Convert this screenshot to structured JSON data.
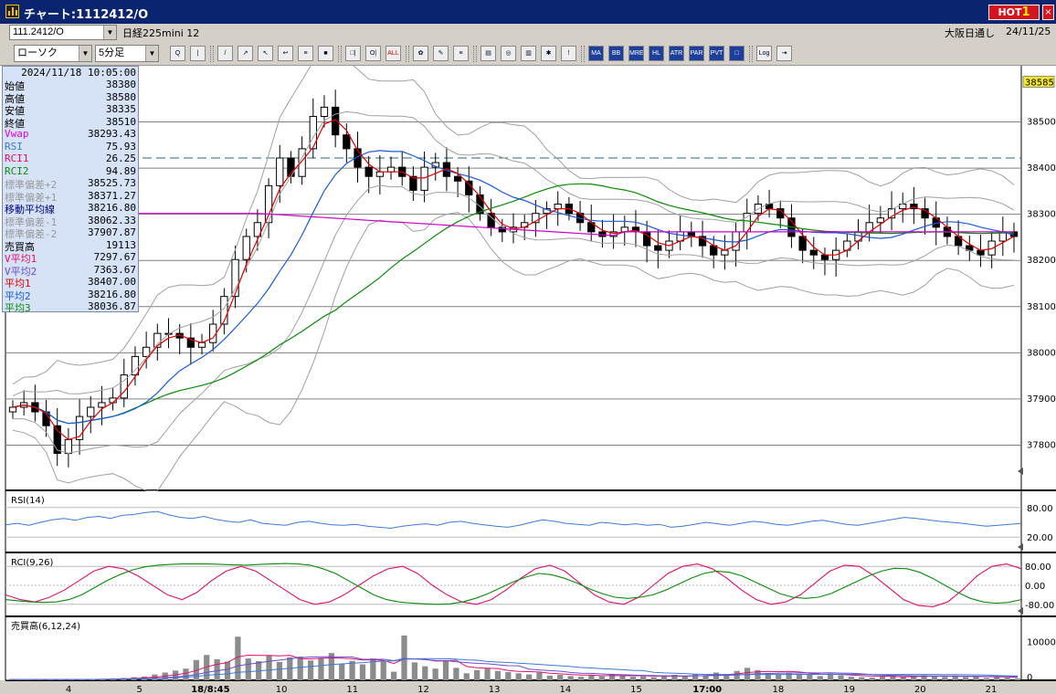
{
  "window": {
    "title": "チャート:1112412/O",
    "hot_label": "HOT",
    "hot_num": "1",
    "close": "×"
  },
  "header": {
    "code": "111.2412/O",
    "name": "日経225mini 12",
    "source": "大阪日通し",
    "date": "24/11/25"
  },
  "controls": {
    "chart_type": "ローソク",
    "period": "5分足"
  },
  "toolbar": [
    "Q",
    "|",
    "/",
    "↗",
    "↖",
    "↩",
    "≡",
    "■",
    "□|",
    "O|",
    "ALL",
    "✿",
    "✎",
    "≡",
    "▤",
    "◎",
    "▥",
    "✱",
    "!",
    "MA",
    "BB",
    "MRE",
    "HL",
    "ATR",
    "PAR",
    "PVT",
    "□",
    "Log",
    "⇥"
  ],
  "info": {
    "datetime": "2024/11/18  10:05:00",
    "rows": [
      {
        "k": "始値",
        "v": "38380",
        "c": "#000"
      },
      {
        "k": "高値",
        "v": "38580",
        "c": "#000"
      },
      {
        "k": "安値",
        "v": "38335",
        "c": "#000"
      },
      {
        "k": "終値",
        "v": "38510",
        "c": "#000"
      },
      {
        "k": "Vwap",
        "v": "38293.43",
        "c": "#e000e0"
      },
      {
        "k": "RSI",
        "v": "75.93",
        "c": "#3a7ad6"
      },
      {
        "k": "RCI1",
        "v": "26.25",
        "c": "#e0106a"
      },
      {
        "k": "RCI2",
        "v": "94.89",
        "c": "#0a8a0a"
      },
      {
        "k": "標準偏差+2",
        "v": "38525.73",
        "c": "#9a9a9a"
      },
      {
        "k": "標準偏差+1",
        "v": "38371.27",
        "c": "#9a9a9a"
      },
      {
        "k": "移動平均線",
        "v": "38216.80",
        "c": "#000080"
      },
      {
        "k": "標準偏差-1",
        "v": "38062.33",
        "c": "#9a9a9a"
      },
      {
        "k": "標準偏差-2",
        "v": "37907.87",
        "c": "#9a9a9a"
      },
      {
        "k": "売買高",
        "v": "19113",
        "c": "#000"
      },
      {
        "k": "V平均1",
        "v": "7297.67",
        "c": "#e0106a"
      },
      {
        "k": "V平均2",
        "v": "7363.67",
        "c": "#6a4ad6"
      },
      {
        "k": "平均1",
        "v": "38407.00",
        "c": "#e00000"
      },
      {
        "k": "平均2",
        "v": "38216.80",
        "c": "#1a5ad6"
      },
      {
        "k": "平均3",
        "v": "38036.87",
        "c": "#0a8a0a"
      }
    ]
  },
  "panels": {
    "rsi_label": "RSI(14)",
    "rci_label": "RCI(9,26)",
    "vol_label": "売買高(6,12,24)"
  },
  "colors": {
    "up": "#ffffff",
    "down": "#000000",
    "ma1": "#e00000",
    "ma2": "#1a5ad6",
    "ma3": "#0a8a0a",
    "bb": "#a0a0a0",
    "vwap": "#d000d0",
    "rsi": "#3a7ad6",
    "rci1": "#e0106a",
    "rci2": "#0a8a0a",
    "vol": "#8c8c8c"
  },
  "chart_data": [
    {
      "type": "candlestick",
      "title": "",
      "ylim": [
        37700,
        38600
      ],
      "yticks": [
        37800,
        37900,
        38000,
        38100,
        38200,
        38300,
        38400,
        38500
      ],
      "current_price": "38585",
      "reference_line": 38420,
      "xticks": [
        "4",
        "5",
        "18/8:45",
        "10",
        "11",
        "12",
        "13",
        "14",
        "15",
        "17:00",
        "18",
        "19",
        "20",
        "21"
      ],
      "closes": [
        37880,
        37890,
        37870,
        37840,
        37780,
        37810,
        37860,
        37880,
        37890,
        37900,
        37950,
        37990,
        38010,
        38040,
        38040,
        38030,
        38010,
        38020,
        38060,
        38120,
        38200,
        38250,
        38280,
        38360,
        38420,
        38380,
        38440,
        38510,
        38530,
        38470,
        38440,
        38400,
        38380,
        38390,
        38400,
        38380,
        38350,
        38400,
        38410,
        38380,
        38370,
        38340,
        38300,
        38270,
        38260,
        38270,
        38280,
        38300,
        38310,
        38320,
        38300,
        38280,
        38260,
        38250,
        38260,
        38270,
        38260,
        38230,
        38220,
        38240,
        38260,
        38250,
        38230,
        38210,
        38220,
        38260,
        38300,
        38320,
        38310,
        38290,
        38250,
        38220,
        38210,
        38200,
        38220,
        38240,
        38260,
        38280,
        38290,
        38310,
        38320,
        38310,
        38290,
        38270,
        38250,
        38230,
        38220,
        38210,
        38240,
        38260,
        38250
      ]
    },
    {
      "type": "line",
      "title": "RSI(14)",
      "ylim": [
        0,
        100
      ],
      "yticks": [
        20,
        80
      ],
      "values": [
        45,
        48,
        44,
        50,
        55,
        58,
        54,
        60,
        62,
        58,
        64,
        66,
        70,
        72,
        65,
        60,
        58,
        62,
        56,
        52,
        50,
        55,
        48,
        46,
        44,
        50,
        52,
        48,
        45,
        44,
        46,
        42,
        40,
        38,
        42,
        45,
        47,
        44,
        50,
        52,
        48,
        45,
        42,
        40,
        44,
        50,
        55,
        52,
        48,
        46,
        44,
        50,
        48,
        45,
        47,
        44,
        46,
        40,
        42,
        46,
        50,
        47,
        44,
        48,
        52,
        50,
        46,
        44,
        48,
        52,
        54,
        50,
        46,
        44,
        48,
        52,
        56,
        60,
        58,
        55,
        52,
        50,
        48,
        45,
        42,
        44,
        46,
        48
      ]
    },
    {
      "type": "line",
      "title": "RCI(9,26)",
      "ylim": [
        -100,
        100
      ],
      "yticks": [
        80,
        0,
        -80
      ],
      "series": [
        {
          "values": [
            -40,
            -60,
            -70,
            -50,
            -20,
            20,
            60,
            80,
            70,
            40,
            0,
            -40,
            -60,
            -30,
            20,
            60,
            80,
            60,
            20,
            -20,
            -60,
            -80,
            -70,
            -40,
            0,
            40,
            70,
            80,
            50,
            0,
            -40,
            -70,
            -80,
            -60,
            -20,
            30,
            70,
            85,
            60,
            10,
            -40,
            -70,
            -80,
            -50,
            0,
            50,
            80,
            90,
            70,
            30,
            -20,
            -60,
            -80,
            -70,
            -40,
            10,
            60,
            85,
            80,
            40,
            -10,
            -60,
            -85,
            -90,
            -70,
            -20,
            40,
            80,
            90,
            70
          ]
        },
        {
          "values": [
            -60,
            -65,
            -70,
            -72,
            -70,
            -60,
            -40,
            -10,
            20,
            45,
            65,
            78,
            85,
            88,
            90,
            90,
            90,
            88,
            86,
            85,
            88,
            90,
            92,
            90,
            85,
            70,
            50,
            20,
            -10,
            -40,
            -60,
            -70,
            -75,
            -78,
            -80,
            -78,
            -70,
            -55,
            -35,
            -10,
            15,
            35,
            50,
            45,
            30,
            10,
            -15,
            -35,
            -50,
            -55,
            -50,
            -40,
            -20,
            5,
            30,
            50,
            60,
            55,
            40,
            15,
            -10,
            -35,
            -50,
            -55,
            -50,
            -35,
            -10,
            15,
            40,
            60,
            72,
            70,
            55,
            30,
            0,
            -30,
            -55,
            -70,
            -75,
            -72,
            -60
          ]
        }
      ]
    },
    {
      "type": "bar",
      "title": "売買高(6,12,24)",
      "ylim": [
        0,
        15000
      ],
      "yticks": [
        10000,
        0
      ],
      "values": [
        200,
        150,
        180,
        300,
        250,
        200,
        180,
        220,
        300,
        400,
        500,
        600,
        800,
        1000,
        1500,
        2000,
        2500,
        3000,
        5200,
        6500,
        5400,
        4800,
        11200,
        5600,
        4900,
        6300,
        4700,
        5900,
        6100,
        5100,
        5800,
        7000,
        4200,
        5000,
        4100,
        5600,
        4800,
        2200,
        11500,
        4600,
        3600,
        3000,
        5100,
        3200,
        1800,
        2600,
        3000,
        2400,
        2100,
        1800,
        1500,
        2000,
        1200,
        1400,
        1100,
        900,
        1400,
        1000,
        1600,
        1200,
        900,
        1000,
        800,
        1200,
        1400,
        1000,
        1600,
        1200,
        2000,
        1600,
        2400,
        3200,
        2600,
        1900,
        1500,
        2000,
        1600,
        1400,
        1100,
        1700,
        1300,
        900,
        800,
        700,
        1000,
        1200,
        900,
        1100,
        1300,
        1000,
        900,
        1200,
        800,
        1100,
        600,
        900,
        700,
        500
      ]
    }
  ]
}
